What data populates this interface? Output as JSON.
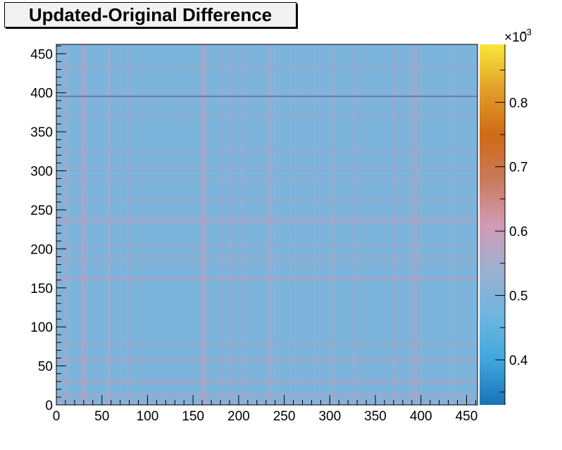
{
  "chart_data": {
    "type": "heatmap",
    "title": "Updated-Original Difference",
    "x_range": [
      0,
      462
    ],
    "y_range": [
      0,
      462
    ],
    "x_ticks": [
      0,
      50,
      100,
      150,
      200,
      250,
      300,
      350,
      400,
      450
    ],
    "y_ticks": [
      0,
      50,
      100,
      150,
      200,
      250,
      300,
      350,
      400,
      450
    ],
    "z_range": [
      0.00033,
      0.00089
    ],
    "z_exponent_label": "×10",
    "z_exponent": "−3",
    "z_ticks": [
      0.4,
      0.5,
      0.6,
      0.7,
      0.8
    ],
    "z_tick_labels": [
      "0.4",
      "0.5",
      "0.6",
      "0.7",
      "0.8"
    ],
    "background_value": 0.00049,
    "stripe_value": 0.00061,
    "stripe_indices": [
      3,
      9,
      12,
      28,
      30,
      56,
      58,
      78,
      160,
      162,
      181,
      190,
      203,
      233,
      235,
      240,
      262,
      288,
      302,
      326,
      370,
      390,
      395,
      400,
      433
    ],
    "dark_rows": [
      395
    ],
    "colormap": [
      "#1a73b8",
      "#41a7dd",
      "#6fb6e0",
      "#9db0d0",
      "#d39ab5",
      "#c97a5a",
      "#cf6a16",
      "#e39f28",
      "#f7e83a"
    ],
    "grid": false
  }
}
